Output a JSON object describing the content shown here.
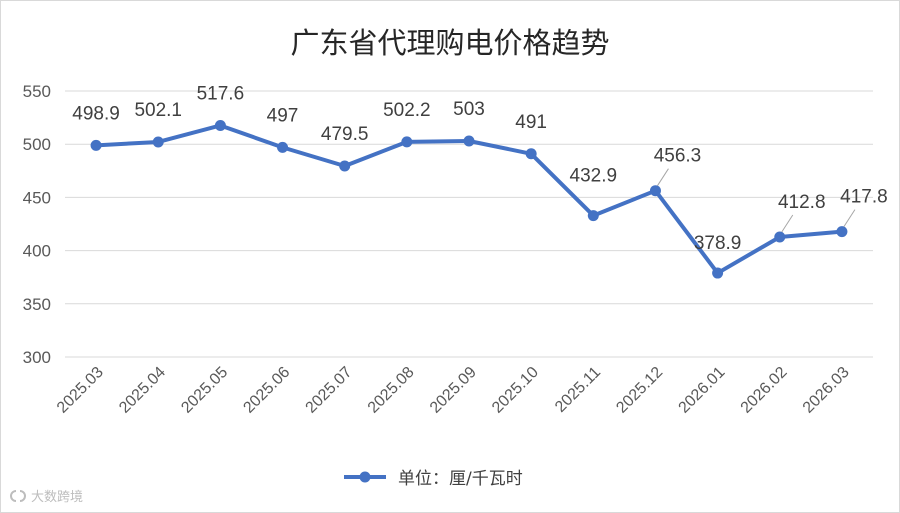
{
  "watermark": {
    "text": "大数跨境",
    "icon": "brand-logo-icon"
  },
  "chart_data": {
    "type": "line",
    "title": "广东省代理购电价格趋势",
    "xlabel": "",
    "ylabel": "",
    "ylim": [
      300,
      550
    ],
    "yticks": [
      300,
      350,
      400,
      450,
      500,
      550
    ],
    "grid": true,
    "legend_position": "bottom",
    "categories": [
      "2025.03",
      "2025.04",
      "2025.05",
      "2025.06",
      "2025.07",
      "2025.08",
      "2025.09",
      "2025.10",
      "2025.11",
      "2025.12",
      "2026.01",
      "2026.02",
      "2026.03"
    ],
    "series": [
      {
        "name": "单位：厘/千瓦时",
        "color": "#4472c4",
        "values": [
          498.9,
          502.1,
          517.6,
          497,
          479.5,
          502.2,
          503,
          491,
          432.9,
          456.3,
          378.9,
          412.8,
          417.8
        ]
      }
    ]
  }
}
